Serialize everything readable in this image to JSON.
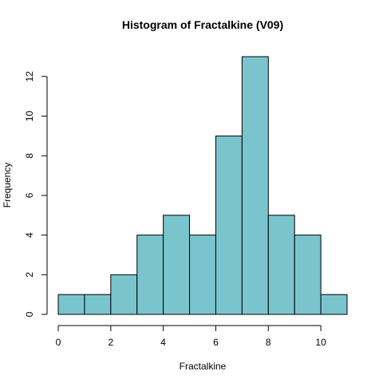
{
  "chart_data": {
    "type": "bar",
    "title": "Histogram of Fractalkine (V09)",
    "xlabel": "Fractalkine",
    "ylabel": "Frequency",
    "bin_edges": [
      0,
      1,
      2,
      3,
      4,
      5,
      6,
      7,
      8,
      9,
      10,
      11
    ],
    "values": [
      1,
      1,
      2,
      4,
      5,
      4,
      9,
      13,
      5,
      4,
      1
    ],
    "x_ticks": [
      "0",
      "2",
      "4",
      "6",
      "8",
      "10"
    ],
    "y_ticks": [
      "0",
      "2",
      "4",
      "6",
      "8",
      "10",
      "12"
    ],
    "xlim": [
      0,
      11
    ],
    "ylim": [
      0,
      13
    ],
    "bar_color": "#7AC5CD",
    "grid": false,
    "legend": "none"
  }
}
